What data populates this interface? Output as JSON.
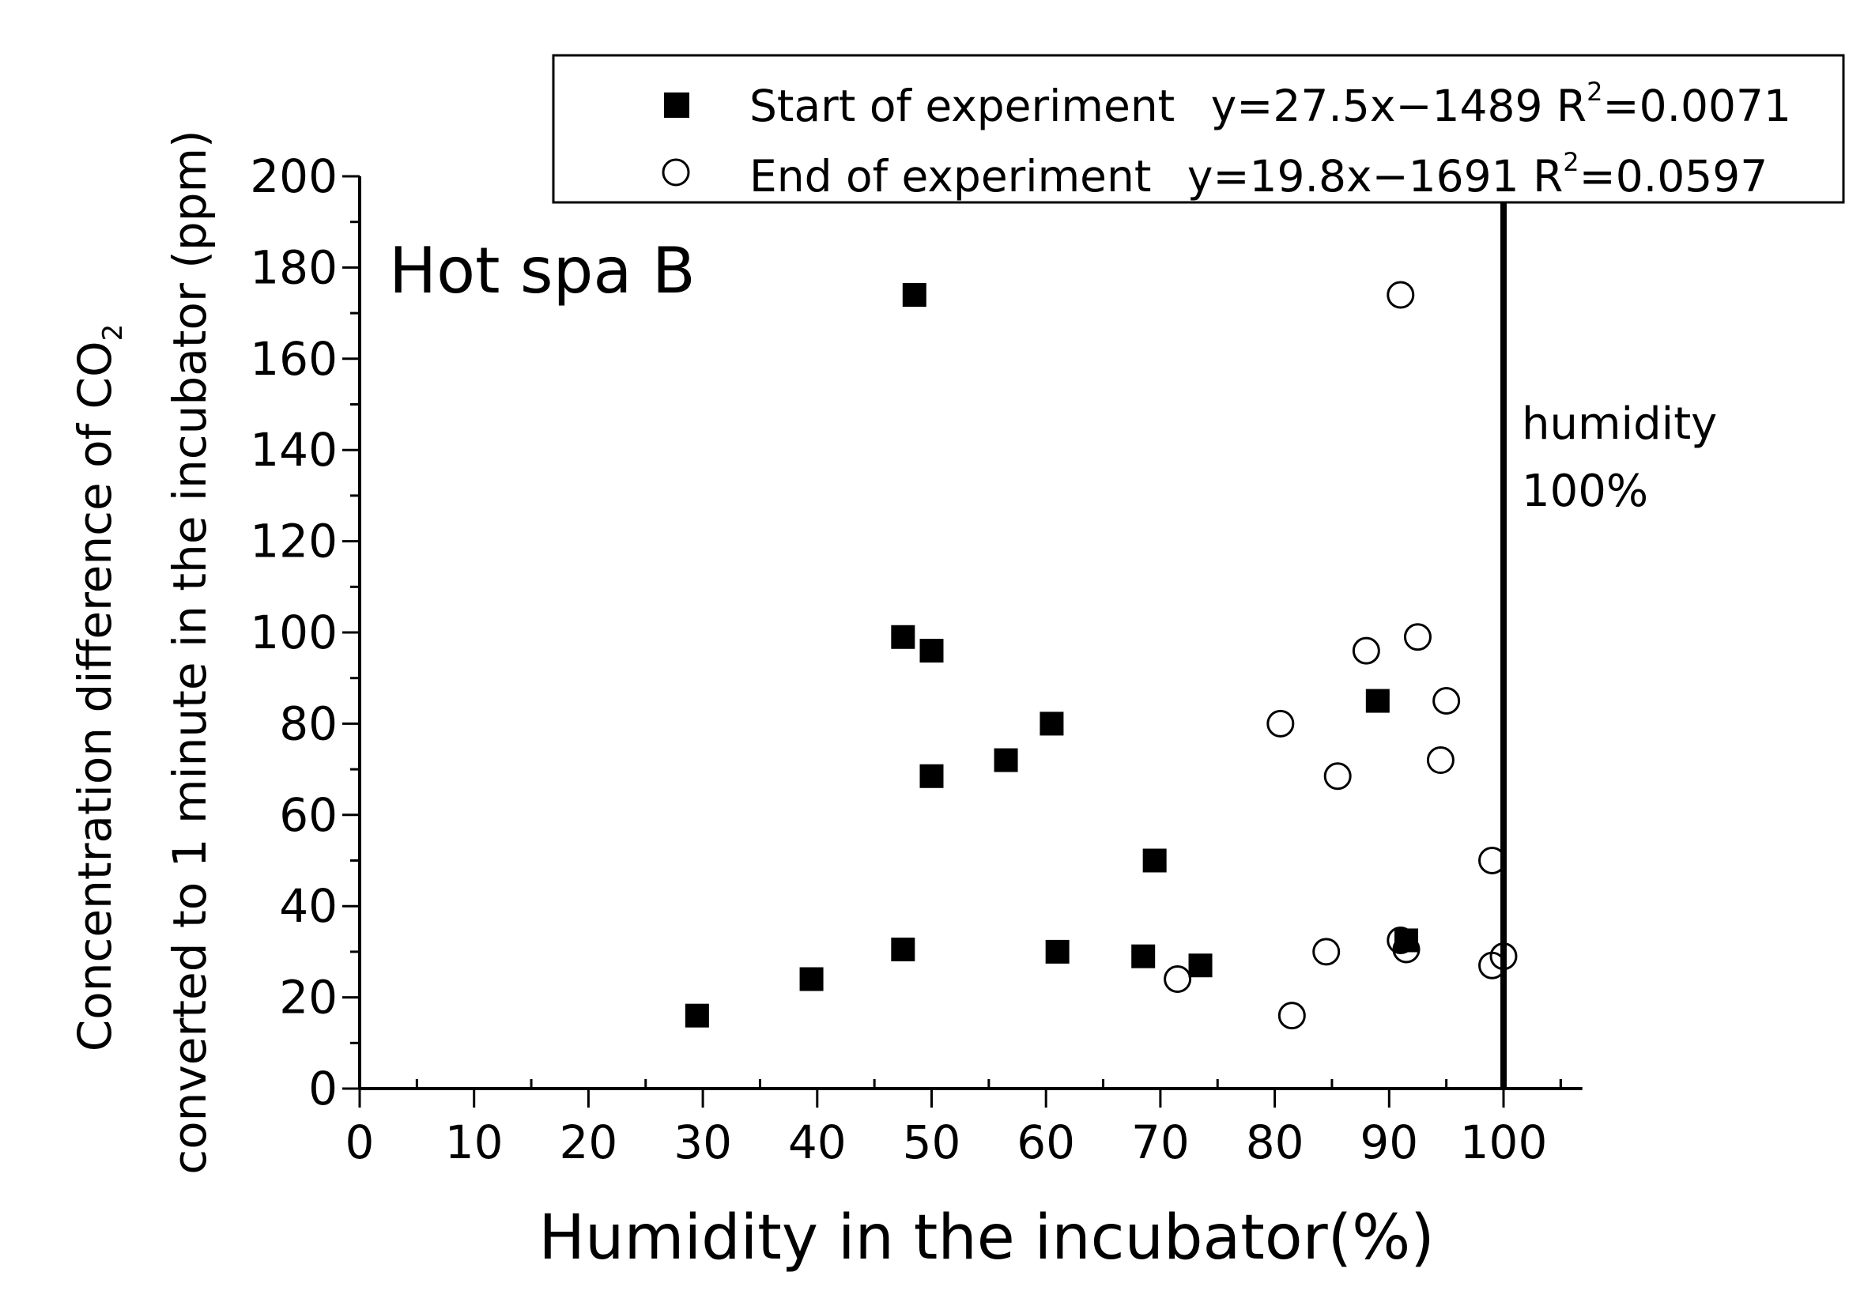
{
  "chart_data": {
    "type": "scatter",
    "panel_label": "Hot spa B",
    "xlabel": "Humidity in the incubator(%)",
    "ylabel": {
      "line1_pre": "Concentration difference of CO",
      "line1_sub": "2",
      "line2": "converted to 1 minute in the incubator (ppm)"
    },
    "xlim": [
      0,
      110
    ],
    "ylim": [
      0,
      200
    ],
    "x_ticks": [
      0,
      10,
      20,
      30,
      40,
      50,
      60,
      70,
      80,
      90,
      100
    ],
    "y_ticks": [
      0,
      20,
      40,
      60,
      80,
      100,
      120,
      140,
      160,
      180,
      200
    ],
    "reference_line": {
      "x": 100,
      "label_line1": "humidity",
      "label_line2": "100%"
    },
    "legend": {
      "position": "top-right",
      "entries": [
        {
          "marker": "filled-square",
          "label": "Start of experiment",
          "eq_pre": "y=27.5x−1489 R",
          "eq_sup": "2",
          "eq_post": "=0.0071"
        },
        {
          "marker": "open-circle",
          "label": "End of experiment",
          "eq_pre": "y=19.8x−1691 R",
          "eq_sup": "2",
          "eq_post": "=0.0597"
        }
      ]
    },
    "series": [
      {
        "name": "Start of experiment",
        "marker": "filled-square",
        "points": [
          [
            48.5,
            174
          ],
          [
            47.5,
            99
          ],
          [
            50,
            96
          ],
          [
            60.5,
            80
          ],
          [
            56.5,
            72
          ],
          [
            50,
            68.5
          ],
          [
            89,
            85
          ],
          [
            69.5,
            50
          ],
          [
            47.5,
            30.5
          ],
          [
            61,
            30
          ],
          [
            68.5,
            29
          ],
          [
            73.5,
            27
          ],
          [
            39.5,
            24
          ],
          [
            29.5,
            16
          ],
          [
            91.5,
            32.5
          ]
        ]
      },
      {
        "name": "End of experiment",
        "marker": "open-circle",
        "points": [
          [
            91,
            174
          ],
          [
            92.5,
            99
          ],
          [
            88,
            96
          ],
          [
            95,
            85
          ],
          [
            80.5,
            80
          ],
          [
            94.5,
            72
          ],
          [
            85.5,
            68.5
          ],
          [
            99,
            50
          ],
          [
            91,
            32.5
          ],
          [
            91.5,
            30.5
          ],
          [
            84.5,
            30
          ],
          [
            100,
            29
          ],
          [
            99,
            27
          ],
          [
            71.5,
            24
          ],
          [
            81.5,
            16
          ]
        ]
      }
    ],
    "colors": {
      "marker": "#000000",
      "background": "#ffffff"
    }
  }
}
